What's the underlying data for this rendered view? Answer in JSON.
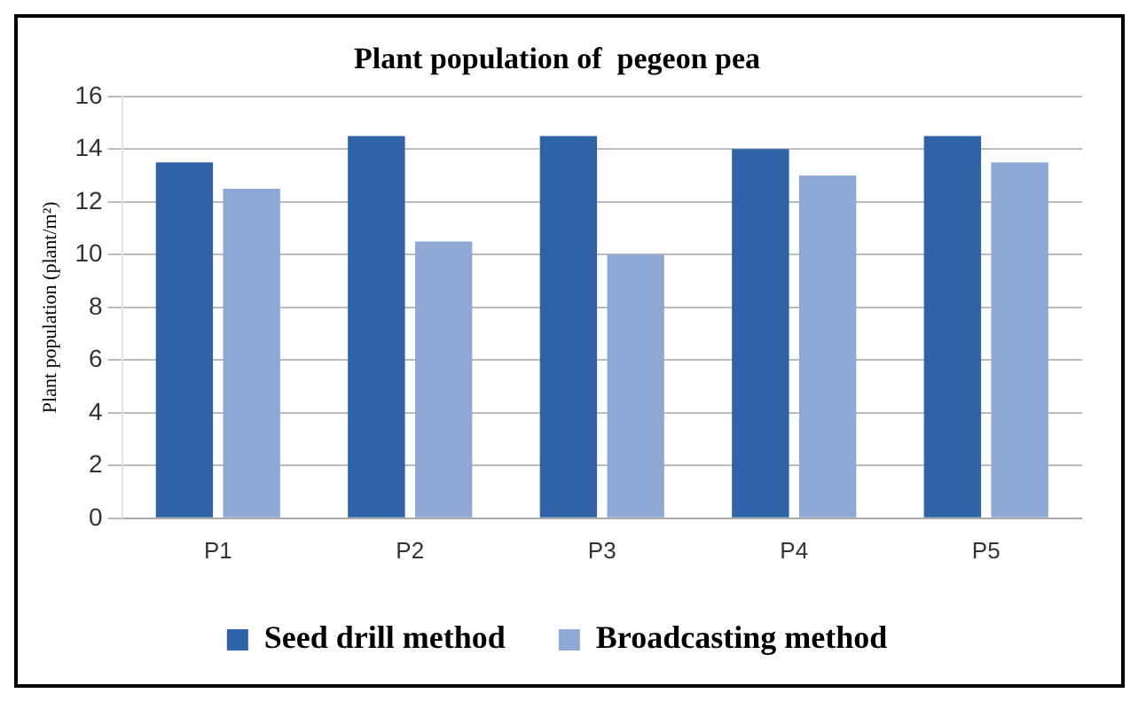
{
  "chart_data": {
    "type": "bar",
    "title": "Plant population of  pegeon pea",
    "ylabel": "Plant population (plant/m²)",
    "categories": [
      "P1",
      "P2",
      "P3",
      "P4",
      "P5"
    ],
    "series": [
      {
        "name": "Seed drill method",
        "color": "#2e63a8",
        "values": [
          13.5,
          14.5,
          14.5,
          14,
          14.5
        ]
      },
      {
        "name": "Broadcasting method",
        "color": "#8fa9d6",
        "values": [
          12.5,
          10.5,
          10,
          13,
          13.5
        ]
      }
    ],
    "ylim": [
      0,
      16
    ],
    "yticks": [
      0,
      2,
      4,
      6,
      8,
      10,
      12,
      14,
      16
    ],
    "grid": "y",
    "legend": "bottom"
  }
}
